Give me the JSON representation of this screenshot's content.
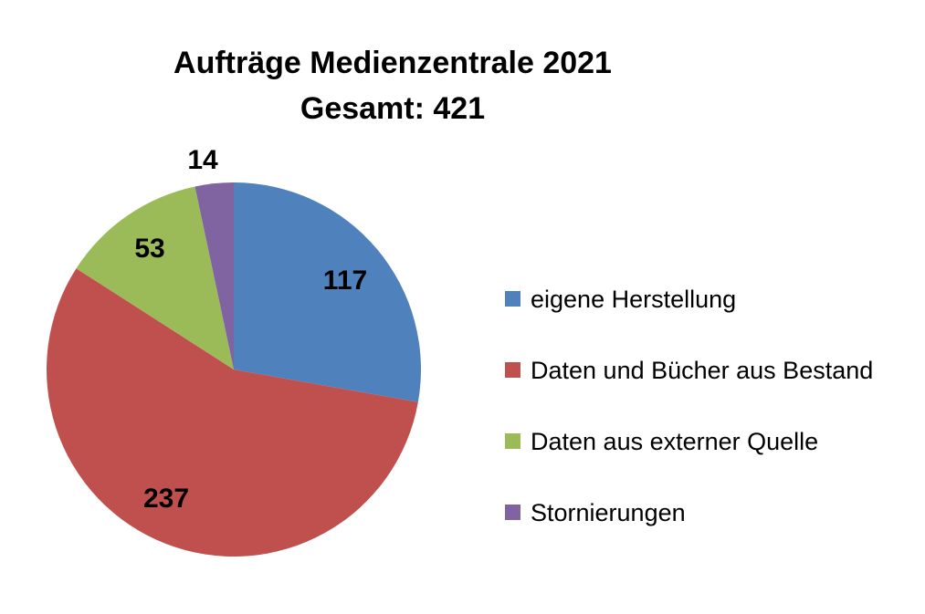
{
  "chart_data": {
    "type": "pie",
    "title": "Aufträge Medienzentrale 2021",
    "subtitle": "Gesamt: 421",
    "categories": [
      "eigene Herstellung",
      "Daten und Bücher aus Bestand",
      "Daten aus externer Quelle",
      "Stornierungen"
    ],
    "values": [
      117,
      237,
      53,
      14
    ],
    "data_labels": [
      "117",
      "237",
      "53",
      "14"
    ],
    "colors": [
      "#4f81bd",
      "#c0504d",
      "#9bbb59",
      "#8064a2"
    ],
    "legend_position": "right",
    "start_angle": "12 o'clock, clockwise"
  }
}
